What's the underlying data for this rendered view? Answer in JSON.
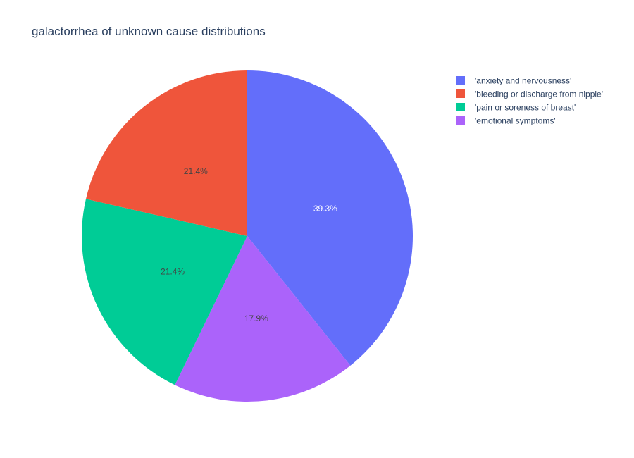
{
  "chart_data": {
    "type": "pie",
    "title": "galactorrhea of unknown cause distributions",
    "labels": [
      "'anxiety and nervousness'",
      "'bleeding or discharge from nipple'",
      "'pain or soreness of breast'",
      "'emotional symptoms'"
    ],
    "values": [
      39.3,
      21.4,
      21.4,
      17.9
    ],
    "value_labels": [
      "39.3%",
      "21.4%",
      "21.4%",
      "17.9%"
    ],
    "colors": [
      "#636efa",
      "#ef553b",
      "#00cc96",
      "#ab63fa"
    ],
    "label_colors": [
      "#ffffff",
      "#444444",
      "#444444",
      "#444444"
    ],
    "slice_order": [
      0,
      3,
      2,
      1
    ],
    "direction": "clockwise",
    "start_angle": "top",
    "legend_position": "top-right"
  }
}
